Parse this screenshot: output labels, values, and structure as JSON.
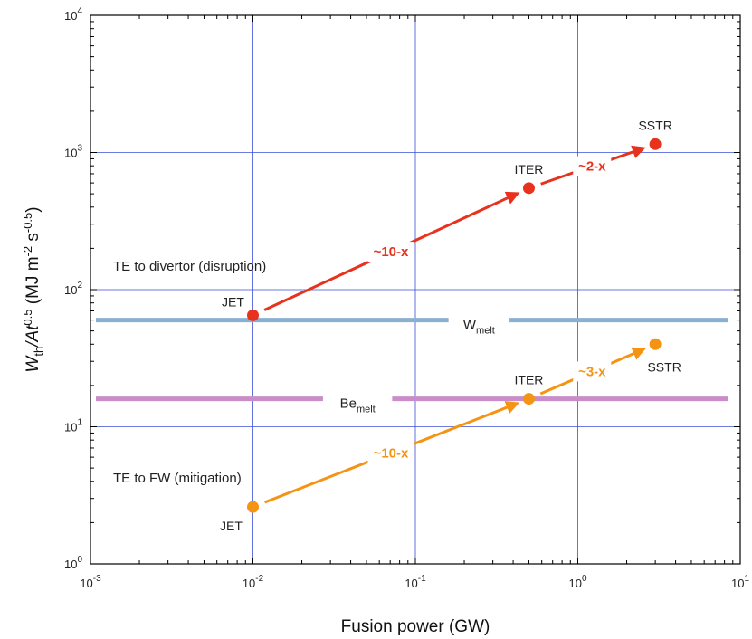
{
  "chart_data": {
    "type": "scatter",
    "xscale": "log",
    "yscale": "log",
    "xlim": [
      0.001,
      10
    ],
    "ylim": [
      1,
      10000
    ],
    "grid": true,
    "xlabel": "Fusion power (GW)",
    "ylabel_parts": [
      "W",
      "th",
      "/At",
      "0.5",
      " (MJ m",
      "-2",
      " s",
      "-0.5",
      ")"
    ],
    "x_ticks": [
      {
        "value": 0.001,
        "base": "10",
        "exp": "-3"
      },
      {
        "value": 0.01,
        "base": "10",
        "exp": "-2"
      },
      {
        "value": 0.1,
        "base": "10",
        "exp": "-1"
      },
      {
        "value": 1,
        "base": "10",
        "exp": "0"
      },
      {
        "value": 10,
        "base": "10",
        "exp": "1"
      }
    ],
    "y_ticks": [
      {
        "value": 1,
        "base": "10",
        "exp": "0"
      },
      {
        "value": 10,
        "base": "10",
        "exp": "1"
      },
      {
        "value": 100,
        "base": "10",
        "exp": "2"
      },
      {
        "value": 1000,
        "base": "10",
        "exp": "3"
      },
      {
        "value": 10000,
        "base": "10",
        "exp": "4"
      }
    ],
    "thresholds": [
      {
        "base": "W",
        "sub": "melt",
        "y": 60,
        "color": "#8ab0d0",
        "gap": [
          0.16,
          0.38
        ]
      },
      {
        "base": "Be",
        "sub": "melt",
        "y": 16,
        "color": "#c98ec9",
        "gap": [
          0.027,
          0.072
        ]
      }
    ],
    "series": [
      {
        "annotation": "TE to divertor (disruption)",
        "color": "#e8321e",
        "points": [
          {
            "label": "JET",
            "x": 0.01,
            "y": 65
          },
          {
            "label": "ITER",
            "x": 0.5,
            "y": 550
          },
          {
            "label": "SSTR",
            "x": 3,
            "y": 1150
          }
        ],
        "factors": [
          "~10-x",
          "~2-x"
        ]
      },
      {
        "annotation": "TE to FW (mitigation)",
        "color": "#f59412",
        "points": [
          {
            "label": "JET",
            "x": 0.01,
            "y": 2.6
          },
          {
            "label": "ITER",
            "x": 0.5,
            "y": 16
          },
          {
            "label": "SSTR",
            "x": 3,
            "y": 40
          }
        ],
        "factors": [
          "~10-x",
          "~3-x"
        ]
      }
    ]
  }
}
